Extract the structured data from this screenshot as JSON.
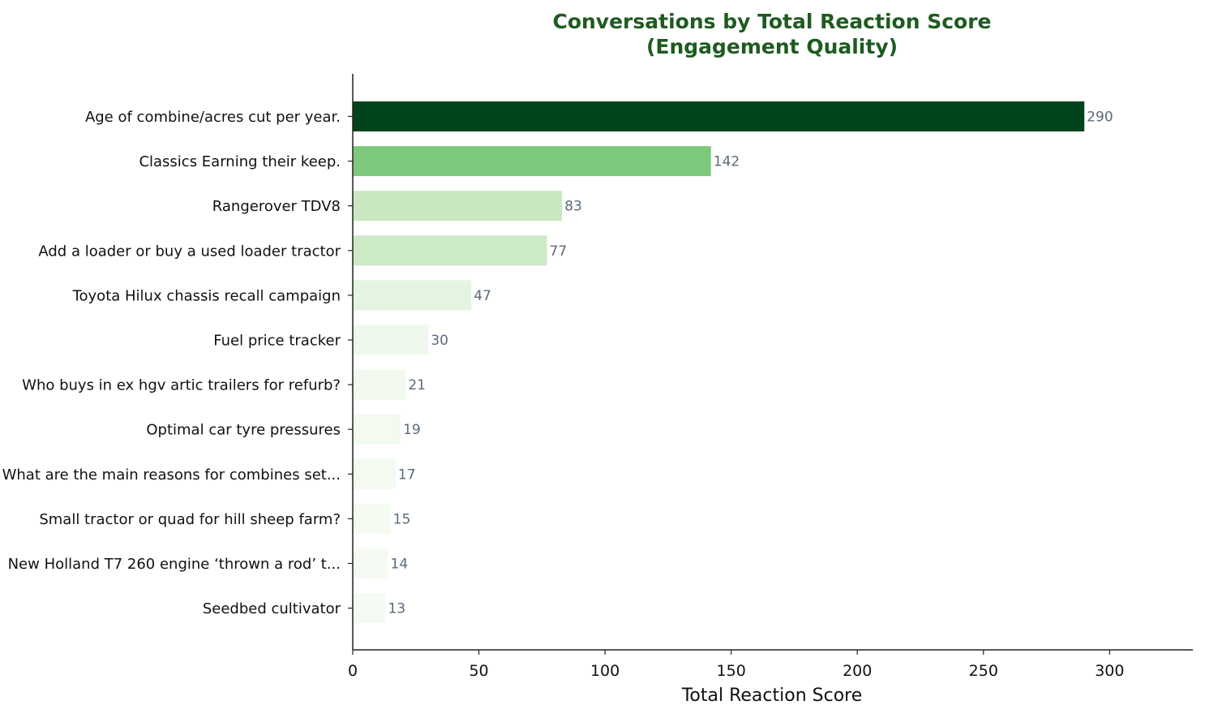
{
  "chart_data": {
    "type": "bar",
    "orientation": "horizontal",
    "title_lines": [
      "Conversations by Total Reaction Score",
      "(Engagement Quality)"
    ],
    "xlabel": "Total Reaction Score",
    "ylabel": "",
    "xlim": [
      0,
      333
    ],
    "xticks": [
      0,
      50,
      100,
      150,
      200,
      250,
      300
    ],
    "grid": false,
    "legend": "none",
    "categories": [
      "Age of combine/acres cut per year.",
      "Classics Earning their keep.",
      "Rangerover TDV8",
      "Add a loader or buy a used loader tractor",
      "Toyota Hilux chassis recall campaign",
      "Fuel price tracker",
      "Who buys in ex hgv artic trailers for refurb?",
      "Optimal car tyre pressures",
      "What are the main reasons for combines set...",
      "Small tractor or quad for hill sheep farm?",
      "New Holland T7 260 engine ‘thrown a rod’ t...",
      "Seedbed cultivator"
    ],
    "values": [
      290,
      142,
      83,
      77,
      47,
      30,
      21,
      19,
      17,
      15,
      14,
      13
    ],
    "data_labels": [
      "290",
      "142",
      "83",
      "77",
      "47",
      "30",
      "21",
      "19",
      "17",
      "15",
      "14",
      "13"
    ],
    "colors": [
      "#00441b",
      "#7fc97f",
      "#c9e8c2",
      "#cdeac6",
      "#e4f4e0",
      "#eff8ec",
      "#f2f9ef",
      "#f3faf0",
      "#f3faf0",
      "#f4fbf1",
      "#f5fbf2",
      "#f5fbf2"
    ]
  }
}
